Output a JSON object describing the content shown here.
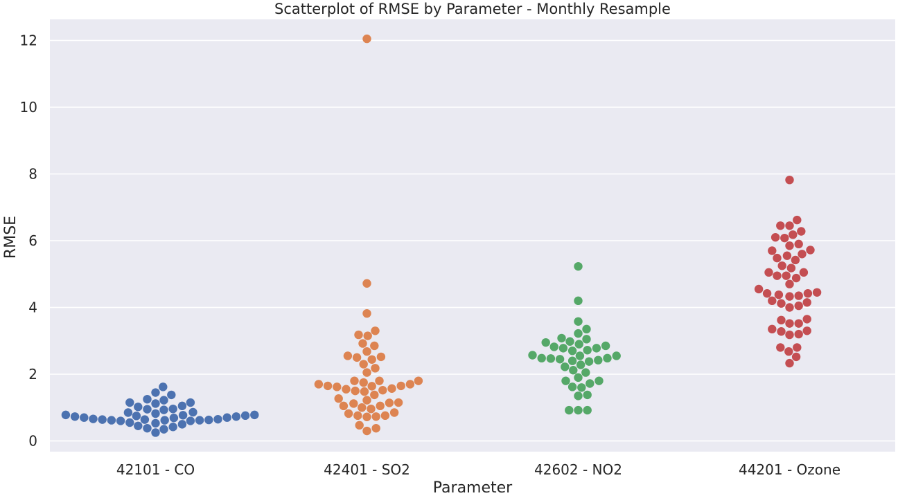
{
  "chart_data": {
    "type": "scatter",
    "title": "Scatterplot of RMSE by Parameter - Monthly Resample",
    "xlabel": "Parameter",
    "ylabel": "RMSE",
    "ylim": [
      -0.35,
      12.6
    ],
    "yticks": [
      0,
      2,
      4,
      6,
      8,
      10,
      12
    ],
    "grid": true,
    "categories": [
      "42101 - CO",
      "42401 - SO2",
      "42602 - NO2",
      "44201 - Ozone"
    ],
    "colors": [
      "#4c72b0",
      "#dd8452",
      "#55a868",
      "#c44e52"
    ],
    "series": [
      {
        "category": "42101 - CO",
        "values": [
          0.76,
          0.73,
          0.77,
          0.7,
          0.66,
          0.64,
          0.62,
          0.6,
          0.96,
          0.82,
          0.55,
          1.15,
          0.7,
          1.02,
          0.45,
          1.38,
          0.95,
          0.65,
          0.35,
          1.22,
          0.85,
          0.25,
          0.53,
          1.45,
          1.12,
          1.62,
          0.78,
          0.38,
          1.25,
          0.62,
          0.93,
          0.42,
          0.75,
          1.05,
          0.5,
          1.15,
          0.86,
          0.6,
          0.62,
          0.63,
          0.64,
          0.69,
          0.73,
          0.78
        ]
      },
      {
        "category": "42401 - SO2",
        "values": [
          1.7,
          1.65,
          1.62,
          1.55,
          1.22,
          0.96,
          1.15,
          0.82,
          1.48,
          1.8,
          1.05,
          0.73,
          0.38,
          3.18,
          2.52,
          2.18,
          2.85,
          2.44,
          1.7,
          1.38,
          1.0,
          0.72,
          0.3,
          12.05,
          4.72,
          3.82,
          3.15,
          2.68,
          2.05,
          1.5,
          2.3,
          2.92,
          3.3,
          1.8,
          1.05,
          0.47,
          2.5,
          1.52,
          0.76,
          1.8,
          1.12,
          0.76,
          2.55,
          1.57,
          1.14,
          0.85,
          1.27,
          1.64,
          1.65,
          1.75
        ]
      },
      {
        "category": "42602 - NO2",
        "values": [
          2.57,
          2.48,
          2.9,
          2.42,
          2.72,
          2.22,
          2.55,
          2.78,
          1.8,
          1.38,
          0.92,
          2.47,
          3.35,
          3.05,
          2.05,
          1.72,
          5.23,
          4.2,
          3.58,
          3.22,
          2.95,
          2.38,
          1.35,
          0.92,
          2.78,
          1.9,
          1.6,
          0.92,
          2.12,
          3.08,
          2.4,
          2.7,
          1.62,
          1.8,
          2.82,
          2.48,
          2.28,
          2.85,
          2.45,
          2.98,
          2.55
        ]
      },
      {
        "category": "44201 - Ozone",
        "values": [
          4.45,
          4.38,
          5.7,
          4.15,
          3.3,
          5.05,
          5.48,
          4.55,
          6.1,
          6.45,
          5.72,
          4.35,
          3.52,
          3.2,
          2.52,
          2.8,
          4.05,
          4.88,
          5.42,
          6.08,
          5.85,
          5.18,
          4.7,
          4.33,
          4.0,
          3.52,
          3.18,
          2.68,
          2.33,
          6.45,
          5.55,
          4.95,
          6.18,
          6.62,
          5.25,
          4.42,
          4.12,
          3.62,
          3.28,
          2.8,
          5.9,
          7.82,
          5.6,
          6.28,
          4.95,
          4.2,
          3.65,
          3.35,
          5.05,
          4.42
        ]
      }
    ]
  }
}
